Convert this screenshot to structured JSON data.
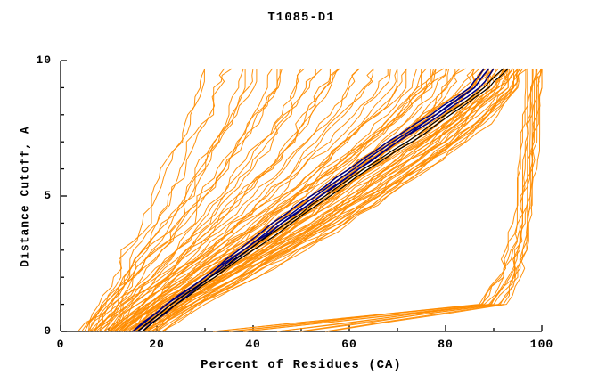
{
  "title": "T1085-D1",
  "chart_data": {
    "type": "line",
    "title": "T1085-D1",
    "xlabel": "Percent of Residues (CA)",
    "ylabel": "Distance Cutoff, A",
    "xlim": [
      0,
      100
    ],
    "ylim": [
      0,
      10
    ],
    "x_ticks": [
      0,
      20,
      40,
      60,
      80,
      100
    ],
    "y_ticks": [
      0,
      5,
      10
    ],
    "x_minor_step": 10,
    "y_minor_step": 1,
    "grid": false,
    "legend": "none",
    "colors": {
      "models": "#FF8C00",
      "highlight": "#000080",
      "highlight2": "#000000",
      "axis": "#000000"
    },
    "y_levels": [
      0,
      1,
      2,
      3,
      4,
      5,
      6,
      7,
      8,
      9,
      9.7
    ],
    "groups": [
      {
        "name": "server-models-steep",
        "color_key": "models",
        "copies": 2,
        "jitter": 2.0,
        "x_by_level": [
          [
            5,
            8,
            11,
            14,
            17,
            20,
            22,
            25,
            27,
            29,
            30
          ],
          [
            6,
            10,
            14,
            17,
            20,
            23,
            26,
            28,
            31,
            33,
            34
          ],
          [
            7,
            11,
            15,
            19,
            23,
            26,
            29,
            32,
            35,
            37,
            38
          ],
          [
            5,
            9,
            13,
            18,
            22,
            26,
            30,
            33,
            36,
            39,
            40
          ],
          [
            8,
            12,
            17,
            21,
            26,
            30,
            34,
            37,
            40,
            43,
            44
          ],
          [
            6,
            10,
            15,
            20,
            25,
            30,
            34,
            38,
            42,
            45,
            46
          ],
          [
            9,
            14,
            19,
            24,
            29,
            34,
            38,
            42,
            46,
            49,
            50
          ],
          [
            7,
            12,
            18,
            24,
            30,
            35,
            40,
            44,
            48,
            51,
            53
          ],
          [
            10,
            15,
            21,
            27,
            33,
            38,
            43,
            47,
            51,
            55,
            56
          ],
          [
            8,
            13,
            20,
            26,
            32,
            38,
            43,
            48,
            52,
            56,
            58
          ]
        ]
      },
      {
        "name": "server-models-mid",
        "color_key": "models",
        "copies": 2,
        "jitter": 2.0,
        "x_by_level": [
          [
            9,
            15,
            22,
            28,
            34,
            40,
            46,
            51,
            56,
            60,
            62
          ],
          [
            11,
            17,
            24,
            31,
            37,
            43,
            49,
            54,
            59,
            63,
            65
          ],
          [
            10,
            16,
            23,
            30,
            37,
            44,
            50,
            56,
            61,
            66,
            68
          ],
          [
            12,
            19,
            26,
            33,
            40,
            47,
            53,
            59,
            64,
            69,
            70
          ],
          [
            9,
            16,
            24,
            32,
            39,
            46,
            53,
            59,
            65,
            70,
            72
          ],
          [
            13,
            20,
            28,
            35,
            42,
            49,
            56,
            62,
            68,
            73,
            74
          ],
          [
            11,
            18,
            26,
            34,
            42,
            49,
            56,
            63,
            69,
            74,
            76
          ],
          [
            14,
            21,
            29,
            37,
            44,
            52,
            59,
            65,
            71,
            76,
            78
          ],
          [
            10,
            17,
            25,
            33,
            41,
            49,
            57,
            64,
            70,
            76,
            78
          ],
          [
            12,
            20,
            29,
            37,
            45,
            53,
            60,
            67,
            73,
            78,
            80
          ],
          [
            15,
            23,
            31,
            39,
            47,
            55,
            62,
            69,
            75,
            80,
            82
          ],
          [
            13,
            21,
            30,
            39,
            47,
            55,
            63,
            70,
            76,
            81,
            83
          ]
        ]
      },
      {
        "name": "server-models-main-bundle",
        "color_key": "models",
        "copies": 2,
        "jitter": 1.6,
        "x_by_level": [
          [
            12,
            19,
            28,
            36,
            44,
            52,
            60,
            68,
            76,
            83,
            86
          ],
          [
            14,
            21,
            30,
            38,
            46,
            54,
            62,
            70,
            78,
            85,
            87
          ],
          [
            16,
            23,
            32,
            40,
            48,
            56,
            64,
            72,
            80,
            86,
            88
          ],
          [
            13,
            20,
            29,
            38,
            47,
            55,
            63,
            71,
            79,
            86,
            88
          ],
          [
            15,
            22,
            31,
            40,
            49,
            57,
            65,
            73,
            81,
            87,
            89
          ],
          [
            17,
            24,
            33,
            42,
            50,
            58,
            66,
            74,
            82,
            88,
            90
          ],
          [
            14,
            22,
            32,
            41,
            50,
            58,
            67,
            75,
            82,
            88,
            90
          ],
          [
            16,
            24,
            34,
            43,
            52,
            60,
            68,
            76,
            83,
            89,
            91
          ],
          [
            18,
            26,
            35,
            44,
            53,
            61,
            69,
            77,
            84,
            90,
            92
          ],
          [
            15,
            23,
            33,
            43,
            52,
            61,
            69,
            77,
            84,
            90,
            92
          ],
          [
            17,
            25,
            35,
            45,
            54,
            62,
            70,
            78,
            85,
            91,
            93
          ],
          [
            19,
            27,
            37,
            46,
            55,
            63,
            71,
            79,
            86,
            92,
            93
          ],
          [
            16,
            25,
            35,
            45,
            55,
            63,
            72,
            80,
            86,
            92,
            94
          ],
          [
            18,
            27,
            37,
            47,
            56,
            65,
            73,
            81,
            87,
            93,
            94
          ],
          [
            20,
            29,
            39,
            49,
            58,
            66,
            74,
            82,
            88,
            93,
            95
          ],
          [
            17,
            26,
            37,
            47,
            57,
            66,
            74,
            82,
            89,
            94,
            95
          ],
          [
            19,
            28,
            39,
            49,
            59,
            67,
            75,
            83,
            89,
            94,
            96
          ],
          [
            21,
            30,
            41,
            51,
            60,
            68,
            76,
            84,
            90,
            95,
            96
          ]
        ]
      },
      {
        "name": "server-models-low-cutoff-fan",
        "color_key": "models",
        "copies": 2,
        "jitter": 1.0,
        "x_by_level": [
          [
            32,
            88,
            92,
            94,
            95,
            96,
            96,
            97,
            97,
            98,
            98
          ],
          [
            38,
            89,
            93,
            95,
            96,
            96,
            97,
            97,
            98,
            98,
            99
          ],
          [
            45,
            90,
            94,
            95,
            96,
            97,
            97,
            98,
            98,
            99,
            99
          ],
          [
            50,
            91,
            94,
            96,
            97,
            97,
            98,
            98,
            99,
            99,
            100
          ],
          [
            55,
            92,
            95,
            96,
            97,
            98,
            98,
            99,
            99,
            100,
            100
          ],
          [
            35,
            87,
            91,
            93,
            94,
            95,
            95,
            96,
            96,
            97,
            97
          ]
        ]
      },
      {
        "name": "highlighted-models",
        "color_key": "highlight",
        "copies": 1,
        "jitter": 0.4,
        "x_by_level": [
          [
            15,
            22,
            30,
            37,
            44,
            52,
            60,
            68,
            77,
            85,
            88
          ],
          [
            16,
            23,
            31,
            38,
            45,
            53,
            61,
            69,
            78,
            86,
            89
          ],
          [
            15,
            22,
            30,
            38,
            46,
            54,
            62,
            70,
            78,
            86,
            89
          ],
          [
            17,
            24,
            31,
            39,
            46,
            54,
            62,
            70,
            79,
            87,
            90
          ]
        ]
      },
      {
        "name": "best-models",
        "color_key": "highlight2",
        "copies": 1,
        "jitter": 0.4,
        "x_by_level": [
          [
            16,
            23,
            31,
            39,
            47,
            55,
            63,
            72,
            80,
            88,
            92
          ],
          [
            17,
            24,
            32,
            40,
            48,
            56,
            64,
            73,
            81,
            89,
            93
          ]
        ]
      }
    ]
  }
}
